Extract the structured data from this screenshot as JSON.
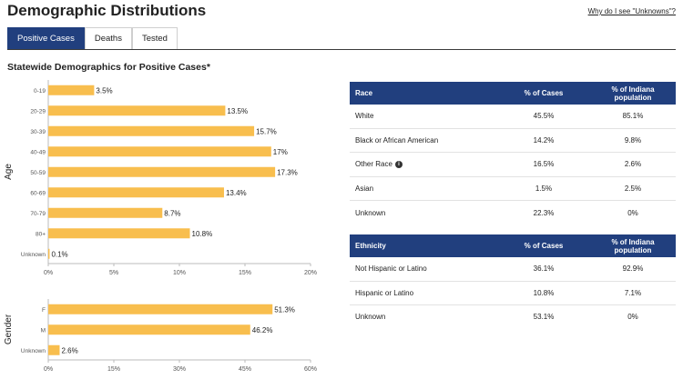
{
  "header": {
    "title": "Demographic Distributions",
    "help_link": "Why do I see \"Unknowns\"?"
  },
  "tabs": [
    {
      "label": "Positive Cases",
      "active": true
    },
    {
      "label": "Deaths",
      "active": false
    },
    {
      "label": "Tested",
      "active": false
    }
  ],
  "subtitle": "Statewide Demographics for Positive Cases*",
  "colors": {
    "bar": "#f8be4e",
    "accent": "#213f7e"
  },
  "chart_data": [
    {
      "type": "bar",
      "orientation": "horizontal",
      "ylabel": "Age",
      "categories": [
        "0-19",
        "20-29",
        "30-39",
        "40-49",
        "50-59",
        "60-69",
        "70-79",
        "80+",
        "Unknown"
      ],
      "values": [
        3.5,
        13.5,
        15.7,
        17,
        17.3,
        13.4,
        8.7,
        10.8,
        0.1
      ],
      "value_labels": [
        "3.5%",
        "13.5%",
        "15.7%",
        "17%",
        "17.3%",
        "13.4%",
        "8.7%",
        "10.8%",
        "0.1%"
      ],
      "xlim": [
        0,
        20
      ],
      "xticks": [
        0,
        5,
        10,
        15,
        20
      ],
      "xtick_labels": [
        "0%",
        "5%",
        "10%",
        "15%",
        "20%"
      ],
      "grid": false
    },
    {
      "type": "bar",
      "orientation": "horizontal",
      "ylabel": "Gender",
      "categories": [
        "F",
        "M",
        "Unknown"
      ],
      "values": [
        51.3,
        46.2,
        2.6
      ],
      "value_labels": [
        "51.3%",
        "46.2%",
        "2.6%"
      ],
      "xlim": [
        0,
        60
      ],
      "xticks": [
        0,
        15,
        30,
        45,
        60
      ],
      "xtick_labels": [
        "0%",
        "15%",
        "30%",
        "45%",
        "60%"
      ],
      "grid": false
    }
  ],
  "race_table": {
    "headers": [
      "Race",
      "% of Cases",
      "% of Indiana population"
    ],
    "rows": [
      {
        "label": "White",
        "cases": "45.5%",
        "population": "85.1%"
      },
      {
        "label": "Black or African American",
        "cases": "14.2%",
        "population": "9.8%"
      },
      {
        "label": "Other Race",
        "cases": "16.5%",
        "population": "2.6%",
        "info_icon": "info-icon"
      },
      {
        "label": "Asian",
        "cases": "1.5%",
        "population": "2.5%"
      },
      {
        "label": "Unknown",
        "cases": "22.3%",
        "population": "0%"
      }
    ]
  },
  "ethnicity_table": {
    "headers": [
      "Ethnicity",
      "% of Cases",
      "% of Indiana population"
    ],
    "rows": [
      {
        "label": "Not Hispanic or Latino",
        "cases": "36.1%",
        "population": "92.9%"
      },
      {
        "label": "Hispanic or Latino",
        "cases": "10.8%",
        "population": "7.1%"
      },
      {
        "label": "Unknown",
        "cases": "53.1%",
        "population": "0%"
      }
    ]
  }
}
